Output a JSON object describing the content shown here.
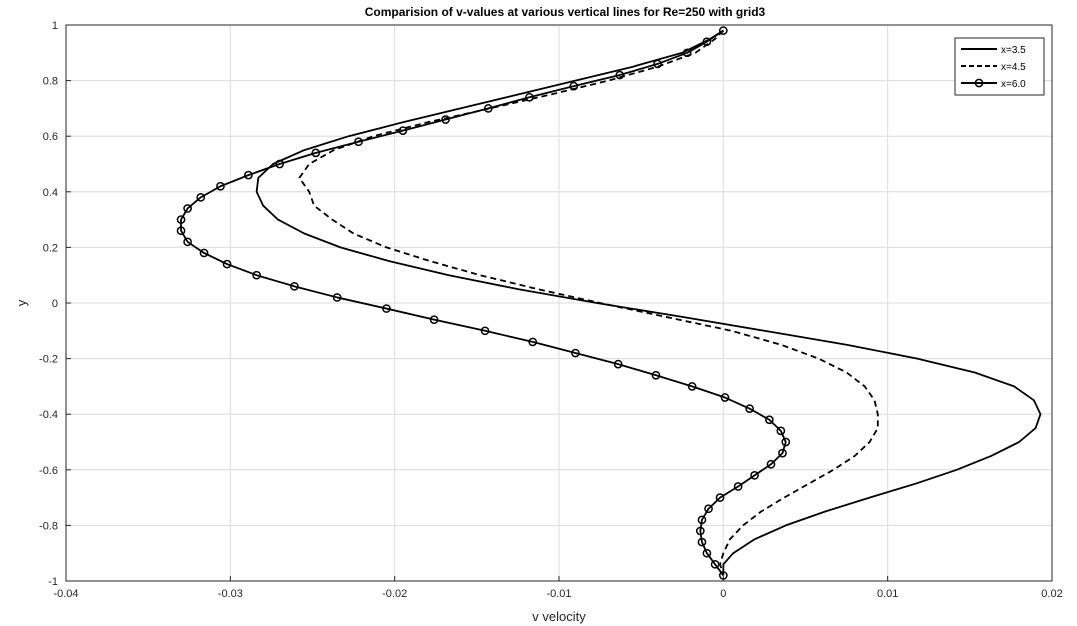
{
  "chart_data": {
    "type": "line",
    "title": "Comparision of v-values at various vertical lines for Re=250 with grid3",
    "xlabel": "v velocity",
    "ylabel": "y",
    "xlim": [
      -0.04,
      0.02
    ],
    "ylim": [
      -1,
      1
    ],
    "xticks": [
      "-0.04",
      "-0.03",
      "-0.02",
      "-0.01",
      "0",
      "0.01",
      "0.02"
    ],
    "yticks": [
      "-1",
      "-0.8",
      "-0.6",
      "-0.4",
      "-0.2",
      "0",
      "0.2",
      "0.4",
      "0.6",
      "0.8",
      "1"
    ],
    "grid": true,
    "legend_position": "top-right",
    "series": [
      {
        "name": "x=3.5",
        "line": "solid",
        "marker": "none",
        "color": "#000000",
        "points": [
          [
            0,
            0.98
          ],
          [
            -0.0008,
            0.95
          ],
          [
            -0.0025,
            0.9
          ],
          [
            -0.0055,
            0.85
          ],
          [
            -0.009,
            0.8
          ],
          [
            -0.0125,
            0.75
          ],
          [
            -0.016,
            0.7
          ],
          [
            -0.0195,
            0.65
          ],
          [
            -0.0228,
            0.6
          ],
          [
            -0.0255,
            0.55
          ],
          [
            -0.0274,
            0.5
          ],
          [
            -0.0283,
            0.45
          ],
          [
            -0.0284,
            0.4
          ],
          [
            -0.028,
            0.35
          ],
          [
            -0.0271,
            0.3
          ],
          [
            -0.0255,
            0.25
          ],
          [
            -0.0233,
            0.2
          ],
          [
            -0.0203,
            0.15
          ],
          [
            -0.0167,
            0.1
          ],
          [
            -0.0125,
            0.05
          ],
          [
            -0.0077,
            0.0
          ],
          [
            -0.0025,
            -0.05
          ],
          [
            0.0025,
            -0.1
          ],
          [
            0.0075,
            -0.15
          ],
          [
            0.0118,
            -0.2
          ],
          [
            0.0153,
            -0.25
          ],
          [
            0.0177,
            -0.3
          ],
          [
            0.0189,
            -0.35
          ],
          [
            0.0193,
            -0.4
          ],
          [
            0.019,
            -0.45
          ],
          [
            0.018,
            -0.5
          ],
          [
            0.0163,
            -0.55
          ],
          [
            0.0142,
            -0.6
          ],
          [
            0.0117,
            -0.65
          ],
          [
            0.0089,
            -0.7
          ],
          [
            0.0062,
            -0.75
          ],
          [
            0.0038,
            -0.8
          ],
          [
            0.0019,
            -0.85
          ],
          [
            0.0006,
            -0.9
          ],
          [
            0.0,
            -0.94
          ],
          [
            0,
            -0.98
          ]
        ]
      },
      {
        "name": "x=4.5",
        "line": "dashed",
        "marker": "none",
        "color": "#000000",
        "points": [
          [
            0,
            0.98
          ],
          [
            -0.0005,
            0.95
          ],
          [
            -0.0017,
            0.9
          ],
          [
            -0.004,
            0.85
          ],
          [
            -0.007,
            0.8
          ],
          [
            -0.0105,
            0.75
          ],
          [
            -0.0142,
            0.7
          ],
          [
            -0.018,
            0.65
          ],
          [
            -0.0213,
            0.6
          ],
          [
            -0.0237,
            0.55
          ],
          [
            -0.0252,
            0.5
          ],
          [
            -0.0258,
            0.45
          ],
          [
            -0.0252,
            0.4
          ],
          [
            -0.0249,
            0.35
          ],
          [
            -0.0238,
            0.3
          ],
          [
            -0.0225,
            0.25
          ],
          [
            -0.0205,
            0.2
          ],
          [
            -0.0178,
            0.15
          ],
          [
            -0.0148,
            0.1
          ],
          [
            -0.0113,
            0.05
          ],
          [
            -0.0075,
            0.0
          ],
          [
            -0.0035,
            -0.05
          ],
          [
            0.0005,
            -0.1
          ],
          [
            0.0035,
            -0.15
          ],
          [
            0.0058,
            -0.2
          ],
          [
            0.0075,
            -0.25
          ],
          [
            0.0086,
            -0.3
          ],
          [
            0.0092,
            -0.35
          ],
          [
            0.0094,
            -0.4
          ],
          [
            0.0094,
            -0.45
          ],
          [
            0.0089,
            -0.5
          ],
          [
            0.008,
            -0.55
          ],
          [
            0.0067,
            -0.6
          ],
          [
            0.0052,
            -0.65
          ],
          [
            0.0037,
            -0.7
          ],
          [
            0.0023,
            -0.75
          ],
          [
            0.0012,
            -0.8
          ],
          [
            0.0004,
            -0.85
          ],
          [
            0.0,
            -0.9
          ],
          [
            -0.0002,
            -0.94
          ],
          [
            0,
            -0.98
          ]
        ]
      },
      {
        "name": "x=6.0",
        "line": "solid",
        "marker": "circle",
        "color": "#000000",
        "points": [
          [
            0,
            0.98
          ],
          [
            -0.001,
            0.94
          ],
          [
            -0.0022,
            0.9
          ],
          [
            -0.004,
            0.86
          ],
          [
            -0.0063,
            0.82
          ],
          [
            -0.0091,
            0.78
          ],
          [
            -0.0118,
            0.74
          ],
          [
            -0.0143,
            0.7
          ],
          [
            -0.0169,
            0.66
          ],
          [
            -0.0195,
            0.62
          ],
          [
            -0.0222,
            0.58
          ],
          [
            -0.0248,
            0.54
          ],
          [
            -0.027,
            0.5
          ],
          [
            -0.0289,
            0.46
          ],
          [
            -0.0306,
            0.42
          ],
          [
            -0.0318,
            0.38
          ],
          [
            -0.0326,
            0.34
          ],
          [
            -0.033,
            0.3
          ],
          [
            -0.033,
            0.26
          ],
          [
            -0.0326,
            0.22
          ],
          [
            -0.0316,
            0.18
          ],
          [
            -0.0302,
            0.14
          ],
          [
            -0.0284,
            0.1
          ],
          [
            -0.0261,
            0.06
          ],
          [
            -0.0235,
            0.02
          ],
          [
            -0.0205,
            -0.02
          ],
          [
            -0.0176,
            -0.06
          ],
          [
            -0.0145,
            -0.1
          ],
          [
            -0.0116,
            -0.14
          ],
          [
            -0.009,
            -0.18
          ],
          [
            -0.0064,
            -0.22
          ],
          [
            -0.0041,
            -0.26
          ],
          [
            -0.0019,
            -0.3
          ],
          [
            0.0001,
            -0.34
          ],
          [
            0.0016,
            -0.38
          ],
          [
            0.0028,
            -0.42
          ],
          [
            0.0035,
            -0.46
          ],
          [
            0.0038,
            -0.5
          ],
          [
            0.0036,
            -0.54
          ],
          [
            0.0029,
            -0.58
          ],
          [
            0.0019,
            -0.62
          ],
          [
            0.0009,
            -0.66
          ],
          [
            -0.0002,
            -0.7
          ],
          [
            -0.0009,
            -0.74
          ],
          [
            -0.0013,
            -0.78
          ],
          [
            -0.0014,
            -0.82
          ],
          [
            -0.0013,
            -0.86
          ],
          [
            -0.001,
            -0.9
          ],
          [
            -0.0005,
            -0.94
          ],
          [
            0,
            -0.98
          ]
        ]
      }
    ]
  }
}
